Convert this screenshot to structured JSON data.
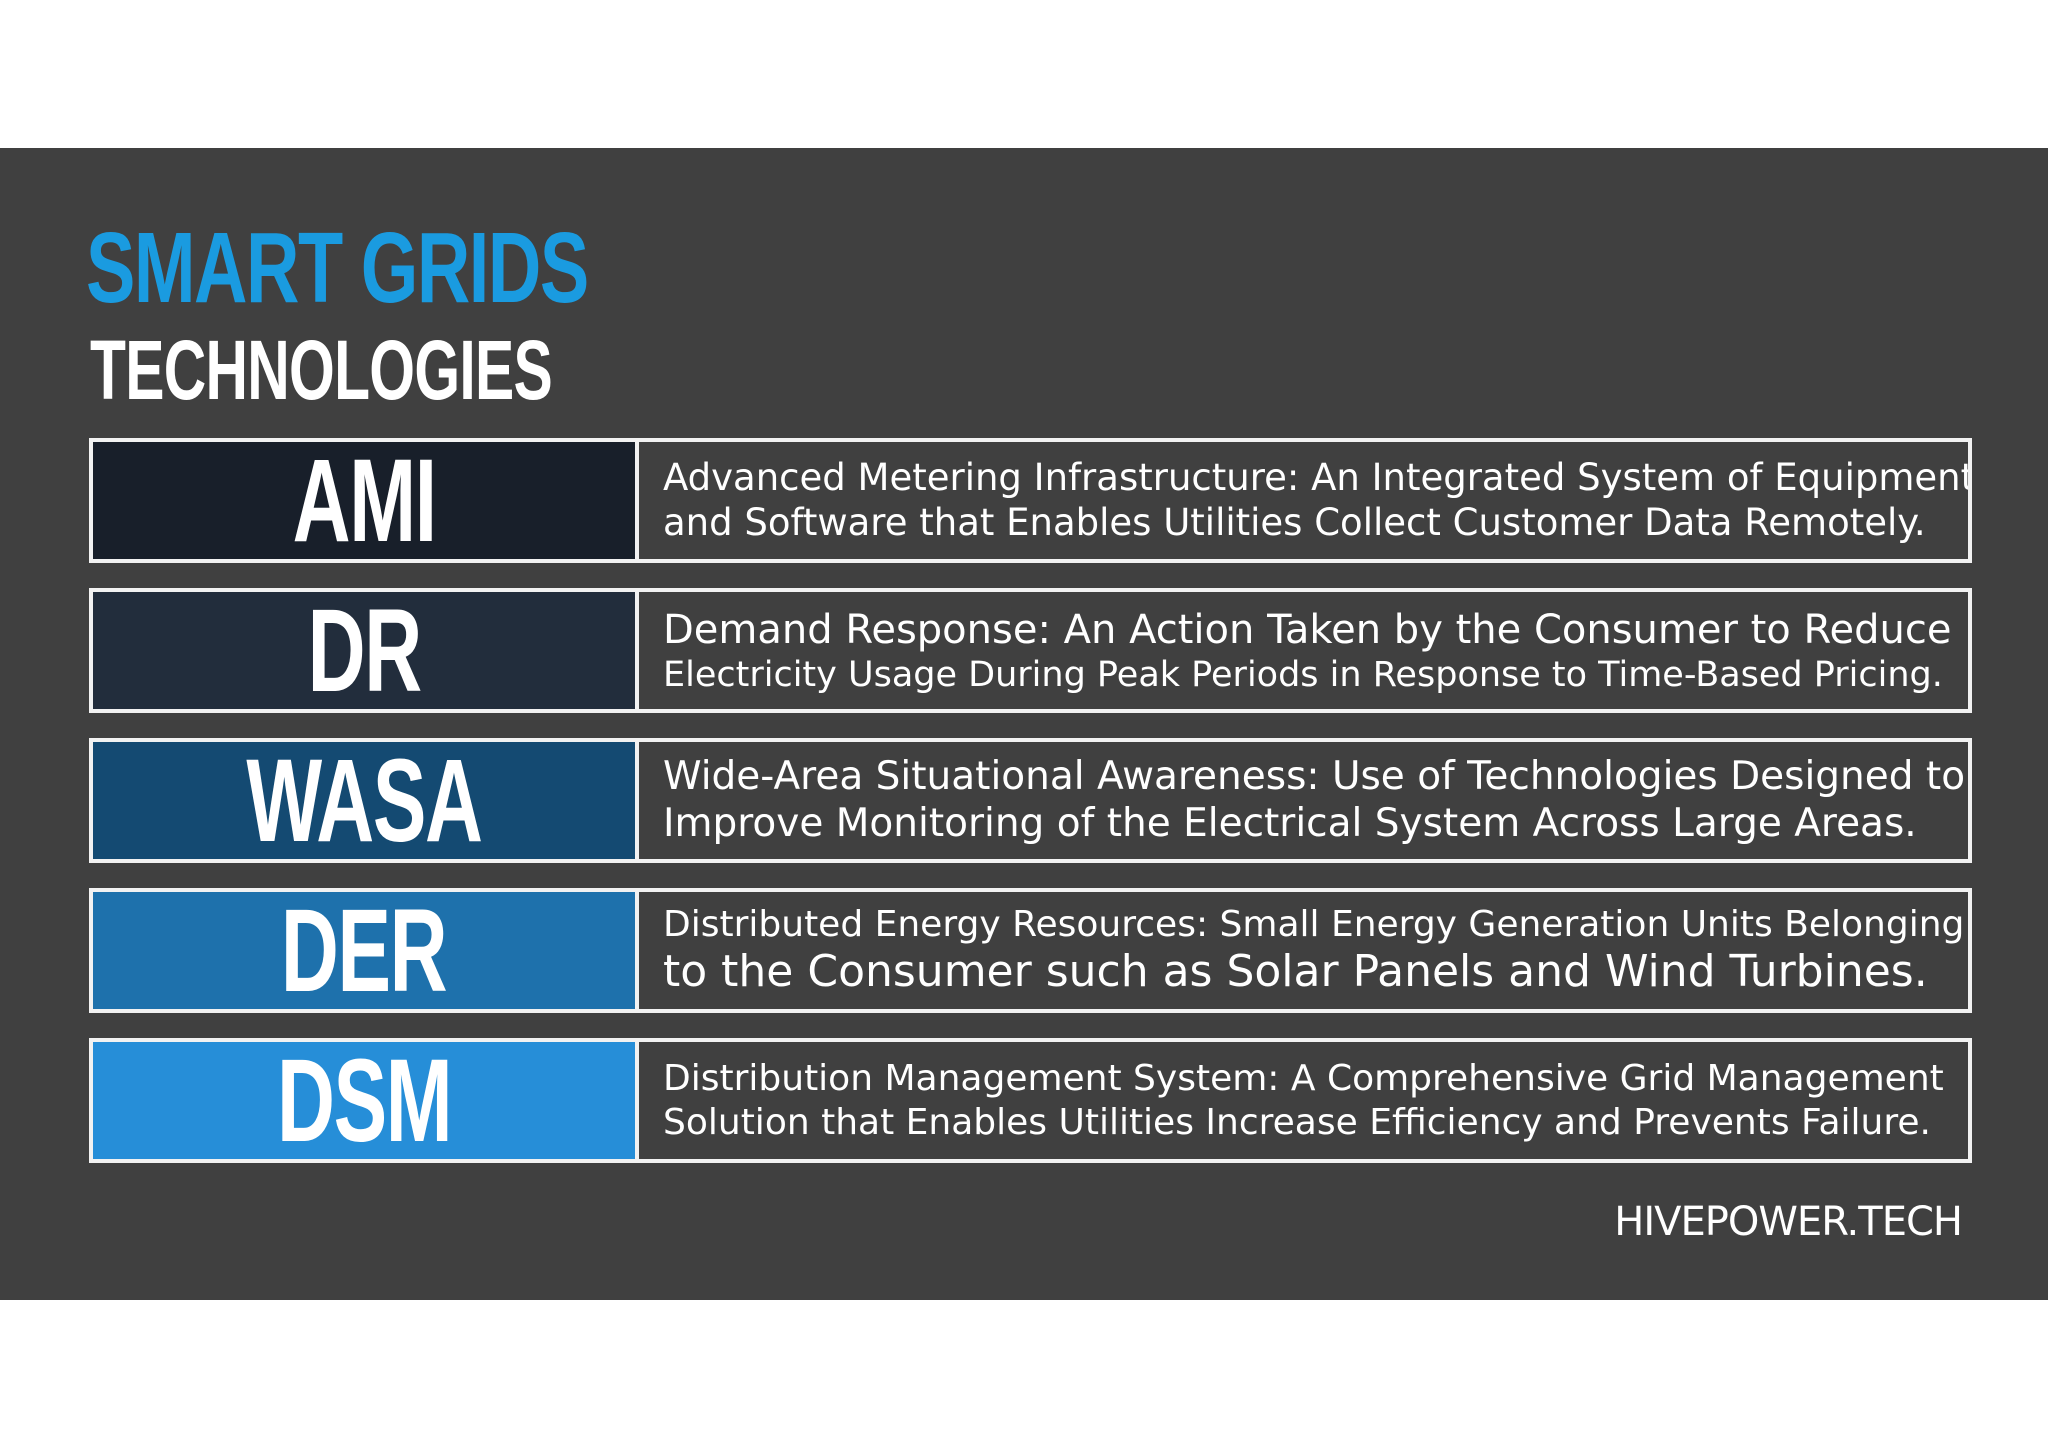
{
  "title": {
    "main": "SMART GRIDS",
    "sub": "TECHNOLOGIES"
  },
  "colors": {
    "background": "#404040",
    "title_accent": "#1a9be0",
    "row_border": "#f2f2f2"
  },
  "technologies": [
    {
      "abbr": "AMI",
      "color": "#181f2a",
      "line1": "Advanced Metering Infrastructure: An Integrated System of Equipment",
      "line2": "and Software that Enables Utilities Collect Customer Data Remotely."
    },
    {
      "abbr": "DR",
      "color": "#222d3c",
      "line1": "Demand Response: An Action Taken by the Consumer to Reduce",
      "line2": "Electricity Usage During Peak Periods in Response to Time-Based Pricing."
    },
    {
      "abbr": "WASA",
      "color": "#144a72",
      "line1": "Wide-Area Situational Awareness: Use of Technologies Designed to",
      "line2": "Improve Monitoring of the Electrical System Across Large Areas."
    },
    {
      "abbr": "DER",
      "color": "#1e71ac",
      "line1": "Distributed Energy Resources: Small Energy Generation Units Belonging",
      "line2": "to the Consumer such as Solar Panels and Wind Turbines."
    },
    {
      "abbr": "DSM",
      "color": "#268ed8",
      "line1": "Distribution Management System: A Comprehensive Grid Management",
      "line2": "Solution that Enables Utilities Increase Efficiency and Prevents Failure."
    }
  ],
  "footer": "HIVEPOWER.TECH"
}
